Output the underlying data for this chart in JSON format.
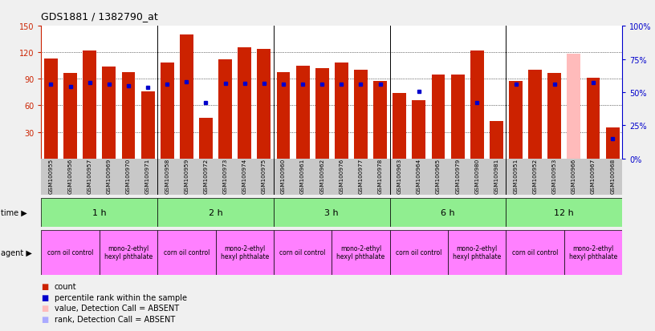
{
  "title": "GDS1881 / 1382790_at",
  "samples": [
    "GSM100955",
    "GSM100956",
    "GSM100957",
    "GSM100969",
    "GSM100970",
    "GSM100971",
    "GSM100958",
    "GSM100959",
    "GSM100972",
    "GSM100973",
    "GSM100974",
    "GSM100975",
    "GSM100960",
    "GSM100961",
    "GSM100962",
    "GSM100976",
    "GSM100977",
    "GSM100978",
    "GSM100963",
    "GSM100964",
    "GSM100965",
    "GSM100979",
    "GSM100980",
    "GSM100981",
    "GSM100951",
    "GSM100952",
    "GSM100953",
    "GSM100966",
    "GSM100967",
    "GSM100968"
  ],
  "bar_values": [
    113,
    97,
    122,
    104,
    98,
    76,
    108,
    140,
    46,
    112,
    126,
    124,
    98,
    105,
    102,
    108,
    100,
    88,
    74,
    66,
    95,
    95,
    122,
    42,
    88,
    100,
    97,
    118,
    91,
    35
  ],
  "bar_absent": [
    false,
    false,
    false,
    false,
    false,
    false,
    false,
    false,
    false,
    false,
    false,
    false,
    false,
    false,
    false,
    false,
    false,
    false,
    false,
    false,
    false,
    false,
    false,
    false,
    false,
    false,
    false,
    true,
    false,
    false
  ],
  "blue_values": [
    84,
    81,
    86,
    84,
    82,
    80,
    84,
    87,
    63,
    85,
    85,
    85,
    84,
    84,
    84,
    84,
    84,
    84,
    null,
    76,
    null,
    null,
    63,
    null,
    84,
    null,
    84,
    null,
    86,
    22
  ],
  "time_groups": [
    {
      "label": "1 h",
      "start": 0,
      "end": 6
    },
    {
      "label": "2 h",
      "start": 6,
      "end": 12
    },
    {
      "label": "3 h",
      "start": 12,
      "end": 18
    },
    {
      "label": "6 h",
      "start": 18,
      "end": 24
    },
    {
      "label": "12 h",
      "start": 24,
      "end": 30
    }
  ],
  "agent_groups": [
    {
      "label": "corn oil control",
      "start": 0,
      "end": 3
    },
    {
      "label": "mono-2-ethyl\nhexyl phthalate",
      "start": 3,
      "end": 6
    },
    {
      "label": "corn oil control",
      "start": 6,
      "end": 9
    },
    {
      "label": "mono-2-ethyl\nhexyl phthalate",
      "start": 9,
      "end": 12
    },
    {
      "label": "corn oil control",
      "start": 12,
      "end": 15
    },
    {
      "label": "mono-2-ethyl\nhexyl phthalate",
      "start": 15,
      "end": 18
    },
    {
      "label": "corn oil control",
      "start": 18,
      "end": 21
    },
    {
      "label": "mono-2-ethyl\nhexyl phthalate",
      "start": 21,
      "end": 24
    },
    {
      "label": "corn oil control",
      "start": 24,
      "end": 27
    },
    {
      "label": "mono-2-ethyl\nhexyl phthalate",
      "start": 27,
      "end": 30
    }
  ],
  "ylim": [
    0,
    150
  ],
  "yticks_left": [
    30,
    60,
    90,
    120,
    150
  ],
  "yticks_right": [
    0,
    25,
    50,
    75,
    100
  ],
  "bar_color": "#CC2200",
  "bar_absent_color": "#FFBBBB",
  "blue_color": "#0000CC",
  "blue_absent_color": "#AAAAFF",
  "green_color": "#90EE90",
  "pink_color": "#FF80FF",
  "grey_color": "#C8C8C8",
  "fig_bg": "#F0F0F0",
  "group_boundaries": [
    6,
    12,
    18,
    24
  ]
}
